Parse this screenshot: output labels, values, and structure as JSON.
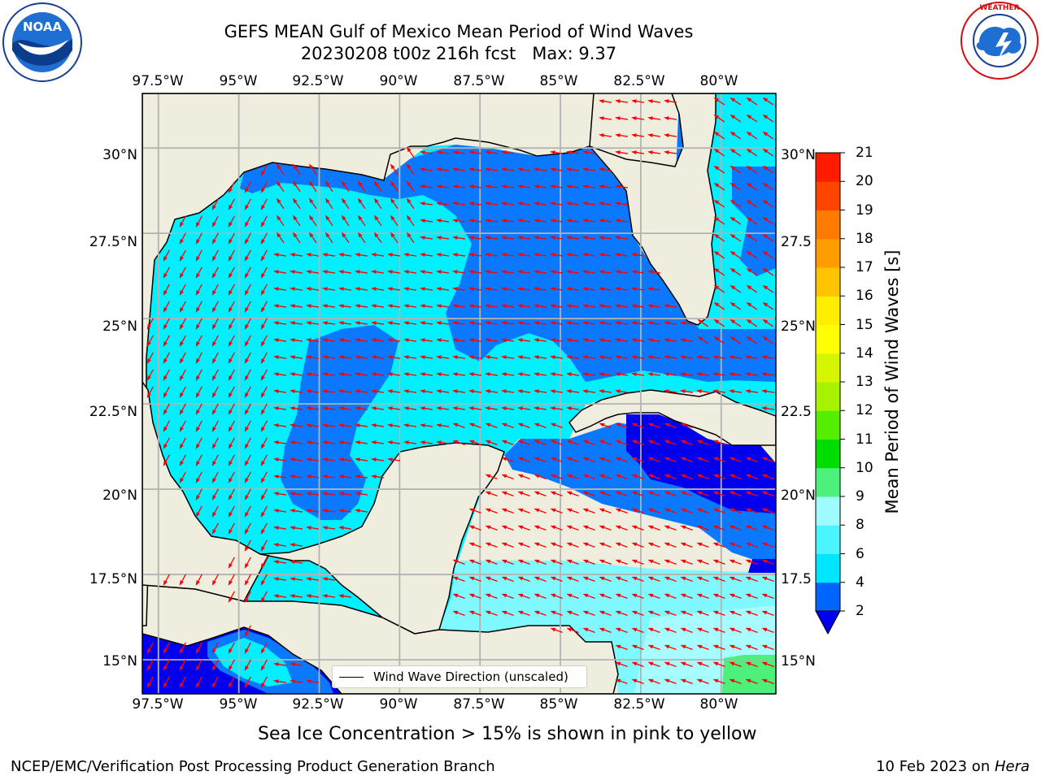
{
  "header": {
    "title_line1": "GEFS MEAN Gulf of Mexico Mean Period of Wind Waves",
    "title_line2": "20230208 t00z 216h fcst   Max: 9.37"
  },
  "logos": {
    "left": "NOAA",
    "left_ring_text": "NATIONAL OCEANIC AND ATMOSPHERIC ADMINISTRATION · U.S. DEPARTMENT OF COMMERCE",
    "right_ring_text": "NATIONAL WEATHER SERVICE"
  },
  "map": {
    "lon_ticks": [
      "97.5°W",
      "95°W",
      "92.5°W",
      "90°W",
      "87.5°W",
      "85°W",
      "82.5°W",
      "80°W"
    ],
    "lat_ticks_left": [
      "30°N",
      "27.5°N",
      "25°N",
      "22.5°N",
      "20°N",
      "17.5°N",
      "15°N"
    ],
    "lat_ticks_right": [
      "30°N",
      "27.5",
      "25°N",
      "22.5",
      "20°N",
      "17.5",
      "15°N"
    ],
    "extent": {
      "lon_min": -98,
      "lon_max": -78.3,
      "lat_min": 14,
      "lat_max": 31.6
    },
    "legend_label": "Wind Wave Direction (unscaled)",
    "land_color": "#efedde",
    "arrow_color": "#ff0000"
  },
  "colorbar": {
    "label": "Mean Period of Wind Waves [s]",
    "ticks": [
      "2",
      "4",
      "6",
      "8",
      "9",
      "10",
      "11",
      "12",
      "13",
      "14",
      "15",
      "16",
      "17",
      "18",
      "19",
      "20",
      "21"
    ],
    "colors": [
      "#0064ff",
      "#00e6ff",
      "#4af5ff",
      "#9ffcff",
      "#4cf07a",
      "#00dd00",
      "#55ee00",
      "#a6f200",
      "#d6f500",
      "#ffff00",
      "#ffee00",
      "#ffc400",
      "#ff9c00",
      "#ff7a00",
      "#ff4400",
      "#ff1a00",
      "#ff0000"
    ],
    "extend_color": "#0000ee"
  },
  "footer": {
    "note": "Sea Ice Concentration > 15% is shown in pink to yellow",
    "left": "NCEP/EMC/Verification Post Processing Product Generation Branch",
    "right_date": "10 Feb 2023 on ",
    "right_host": "Hera"
  }
}
